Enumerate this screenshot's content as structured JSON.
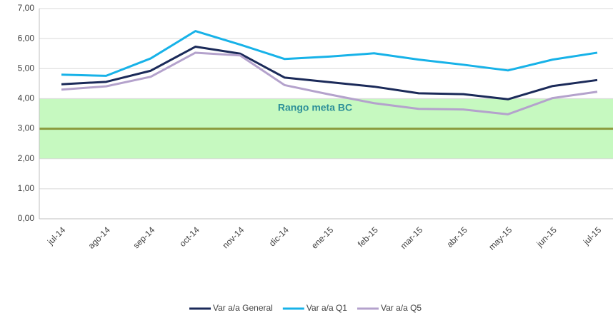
{
  "chart_data": {
    "type": "line",
    "categories": [
      "jul-14",
      "ago-14",
      "sep-14",
      "oct-14",
      "nov-14",
      "dic-14",
      "ene-15",
      "feb-15",
      "mar-15",
      "abr-15",
      "may-15",
      "jun-15",
      "jul-15"
    ],
    "series": [
      {
        "name": "Var a/a General",
        "color": "#1b2a59",
        "values": [
          4.48,
          4.56,
          4.93,
          5.73,
          5.5,
          4.7,
          4.55,
          4.4,
          4.18,
          4.15,
          3.98,
          4.42,
          4.62
        ]
      },
      {
        "name": "Var a/a Q1",
        "color": "#17b2e8",
        "values": [
          4.8,
          4.76,
          5.34,
          6.25,
          5.8,
          5.32,
          5.4,
          5.51,
          5.3,
          5.13,
          4.94,
          5.3,
          5.53
        ]
      },
      {
        "name": "Var a/a Q5",
        "color": "#b4a2cc",
        "values": [
          4.3,
          4.41,
          4.73,
          5.53,
          5.44,
          4.45,
          4.14,
          3.85,
          3.66,
          3.64,
          3.48,
          4.02,
          4.23
        ]
      }
    ],
    "band": {
      "from": 2,
      "to": 4,
      "label": "Rango meta BC",
      "color": "#c6f9c0",
      "label_color": "#2c8f98"
    },
    "target": {
      "value": 3,
      "color": "#8a9a3c"
    },
    "ylim": [
      0,
      7
    ],
    "yticks": [
      {
        "value": 0,
        "label": "0,00"
      },
      {
        "value": 1,
        "label": "1,00"
      },
      {
        "value": 2,
        "label": "2,00"
      },
      {
        "value": 3,
        "label": "3,00"
      },
      {
        "value": 4,
        "label": "4,00"
      },
      {
        "value": 5,
        "label": "5,00"
      },
      {
        "value": 6,
        "label": "6,00"
      },
      {
        "value": 7,
        "label": "7,00"
      }
    ],
    "grid": true,
    "legend": "bottom"
  }
}
